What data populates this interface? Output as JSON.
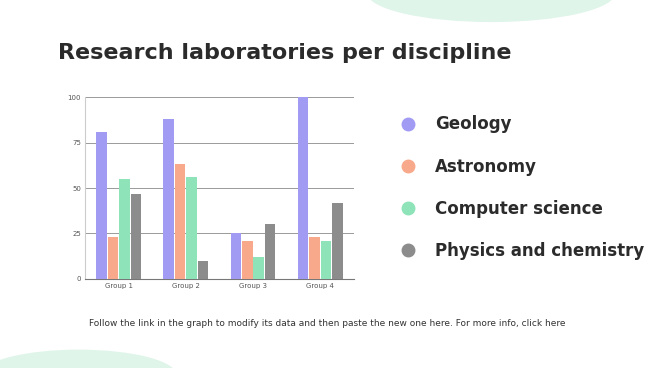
{
  "chart_data": {
    "type": "bar",
    "title": "Research laboratories per discipline",
    "categories": [
      "Group 1",
      "Group 2",
      "Group 3",
      "Group 4"
    ],
    "series": [
      {
        "name": "Geology",
        "color": "#a29bf4",
        "values": [
          81,
          88,
          25,
          100
        ]
      },
      {
        "name": "Astronomy",
        "color": "#f8a98b",
        "values": [
          23,
          63,
          21,
          23
        ]
      },
      {
        "name": "Computer science",
        "color": "#8ee3b8",
        "values": [
          55,
          56,
          12,
          21
        ]
      },
      {
        "name": "Physics and chemistry",
        "color": "#8c8c8c",
        "values": [
          47,
          10,
          30,
          42
        ]
      }
    ],
    "ylim": [
      0,
      100
    ],
    "yticks": [
      0,
      25,
      50,
      75,
      100
    ],
    "grid": true,
    "legend": "right",
    "footer": "Follow the link in the graph to modify its data and then paste the new one here. For more info, click here"
  }
}
